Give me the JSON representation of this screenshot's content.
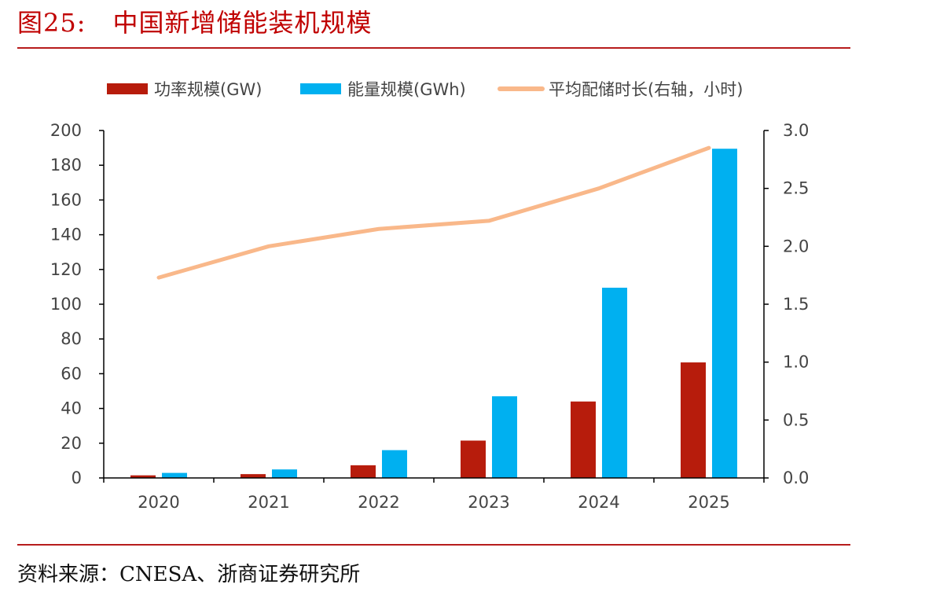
{
  "figure": {
    "number": "图25:",
    "title": "中国新增储能装机规模",
    "source": "资料来源：CNESA、浙商证券研究所"
  },
  "chart_data": {
    "type": "bar",
    "categories": [
      "2020",
      "2021",
      "2022",
      "2023",
      "2024",
      "2025"
    ],
    "series": [
      {
        "name": "功率规模(GW)",
        "type": "bar",
        "axis": "left",
        "color": "#b71c0c",
        "values": [
          1.5,
          2.2,
          7.3,
          21.5,
          44.0,
          66.5
        ]
      },
      {
        "name": "能量规模(GWh)",
        "type": "bar",
        "axis": "left",
        "color": "#00b0f0",
        "values": [
          2.9,
          4.9,
          16.0,
          47.0,
          109.5,
          189.5
        ]
      },
      {
        "name": "平均配储时长(右轴，小时)",
        "type": "line",
        "axis": "right",
        "color": "#f9b88a",
        "values": [
          1.73,
          2.0,
          2.15,
          2.22,
          2.5,
          2.85
        ]
      }
    ],
    "y_left": {
      "min": 0,
      "max": 200,
      "ticks": [
        "0",
        "20",
        "40",
        "60",
        "80",
        "100",
        "120",
        "140",
        "160",
        "180",
        "200"
      ]
    },
    "y_right": {
      "min": 0,
      "max": 3.0,
      "ticks": [
        "0.0",
        "0.5",
        "1.0",
        "1.5",
        "2.0",
        "2.5",
        "3.0"
      ]
    },
    "legend_position": "top",
    "grid": false
  }
}
